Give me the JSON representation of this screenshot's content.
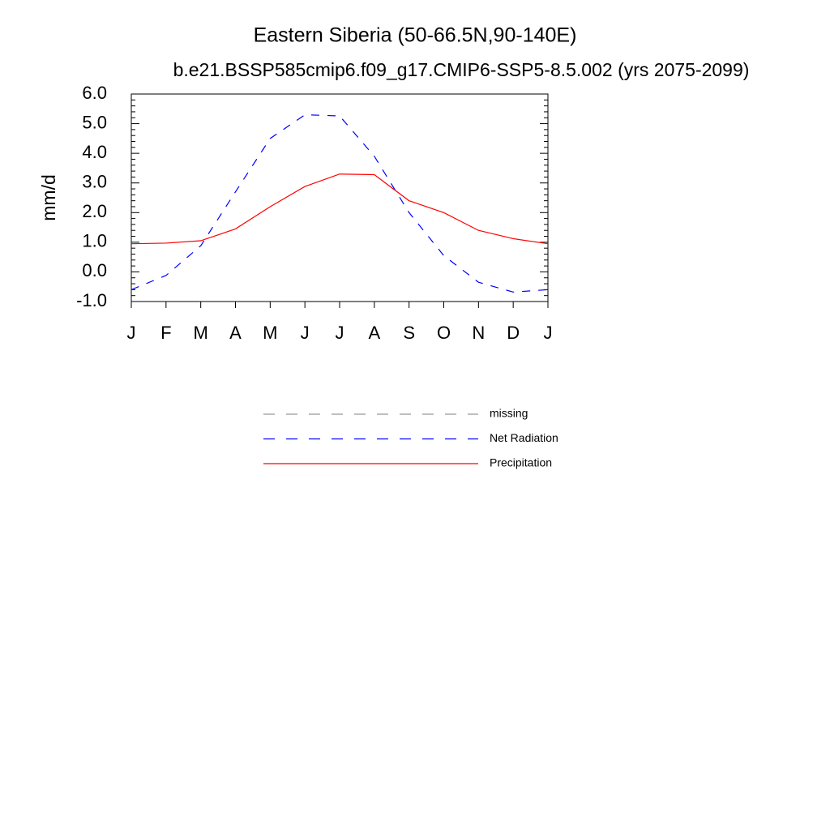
{
  "chart_data": {
    "type": "line",
    "title": "Eastern Siberia (50-66.5N,90-140E)",
    "subtitle": "b.e21.BSSP585cmip6.f09_g17.CMIP6-SSP5-8.5.002 (yrs 2075-2099)",
    "y_label": "mm/d",
    "categories": [
      "J",
      "F",
      "M",
      "A",
      "M",
      "J",
      "J",
      "A",
      "S",
      "O",
      "N",
      "D",
      "J"
    ],
    "ylim": [
      -1,
      6
    ],
    "yticks": [
      {
        "value": -1,
        "label": "-1.0"
      },
      {
        "value": 0,
        "label": "0.0"
      },
      {
        "value": 1,
        "label": "1.0"
      },
      {
        "value": 2,
        "label": "2.0"
      },
      {
        "value": 3,
        "label": "3.0"
      },
      {
        "value": 4,
        "label": "4.0"
      },
      {
        "value": 5,
        "label": "5.0"
      },
      {
        "value": 6,
        "label": "6.0"
      }
    ],
    "series": [
      {
        "name": "missing",
        "color": "#999999",
        "dashed": true,
        "values": [
          null,
          null,
          null,
          null,
          null,
          null,
          null,
          null,
          null,
          null,
          null,
          null,
          null
        ]
      },
      {
        "name": "Net Radiation",
        "color": "#0000ff",
        "dashed": true,
        "values": [
          -0.6,
          -0.12,
          0.88,
          2.7,
          4.5,
          5.3,
          5.26,
          3.9,
          2.0,
          0.55,
          -0.35,
          -0.68,
          -0.6
        ]
      },
      {
        "name": "Precipitation",
        "color": "#ff0000",
        "dashed": false,
        "values": [
          0.95,
          0.97,
          1.05,
          1.45,
          2.2,
          2.88,
          3.3,
          3.28,
          2.4,
          2.0,
          1.4,
          1.12,
          0.95
        ]
      }
    ]
  }
}
